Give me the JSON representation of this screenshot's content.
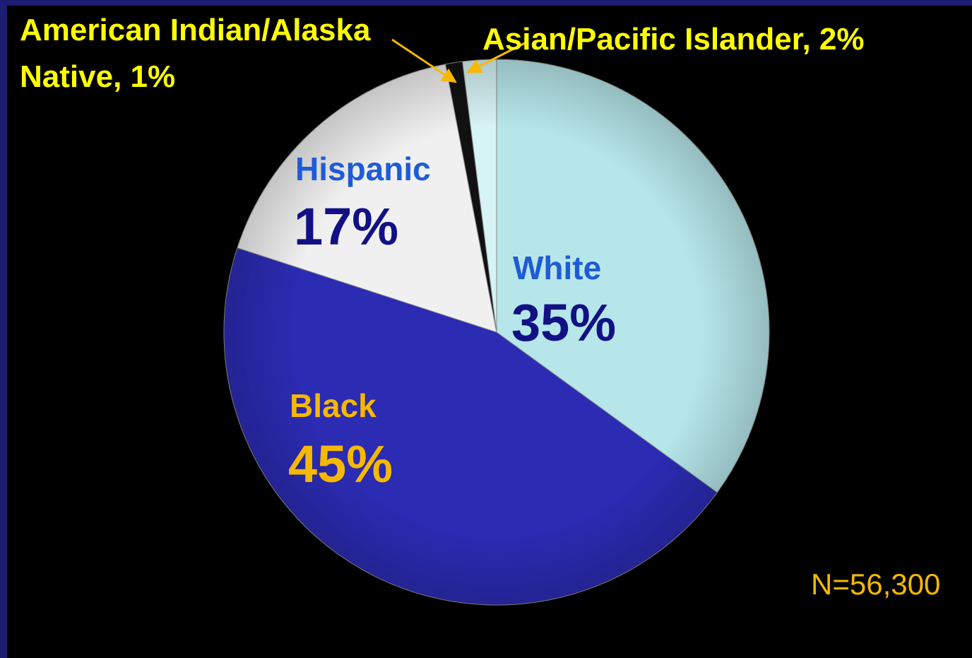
{
  "chart_data": {
    "type": "pie",
    "categories": [
      "White",
      "Black",
      "Hispanic",
      null,
      null
    ],
    "values": [
      35,
      45,
      17,
      1,
      2
    ],
    "value_labels": [
      "35%",
      "45%",
      "17%",
      "American Indian/Alaska Native, 1%",
      "Asian/Pacific Islander, 2%"
    ],
    "colors": [
      "#b6e6ea",
      "#2b2bb3",
      "#f0f0f0",
      "#111111",
      "#d6f3f5"
    ],
    "annotation": "N=56,300"
  }
}
